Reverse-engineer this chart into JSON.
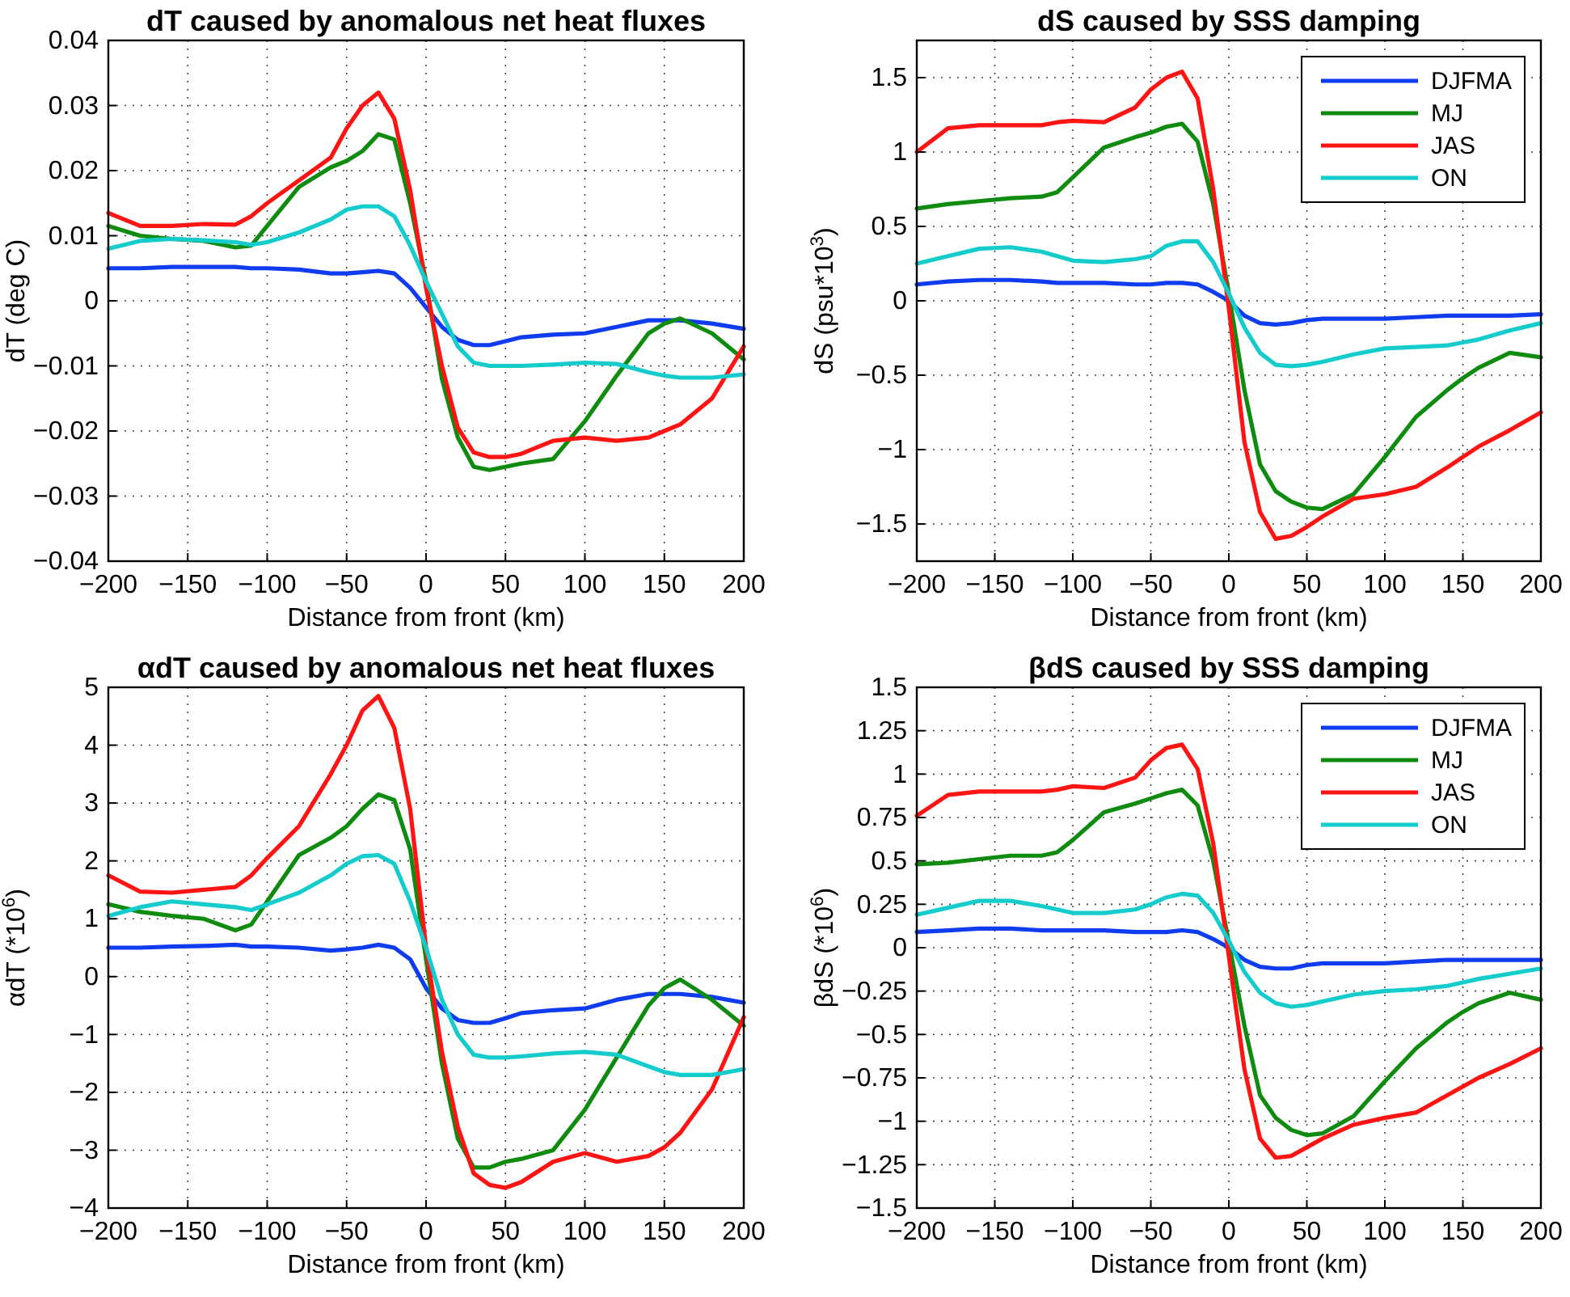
{
  "chart_data": [
    {
      "type": "line",
      "title": "dT caused by anomalous net heat fluxes",
      "xlabel": "Distance from front (km)",
      "ylabel": "dT (deg C)",
      "xlim": [
        -200,
        200
      ],
      "xticks": [
        -200,
        -150,
        -100,
        -50,
        0,
        50,
        100,
        150,
        200
      ],
      "ylim": [
        -0.04,
        0.04
      ],
      "yticks": [
        -0.04,
        -0.03,
        -0.02,
        -0.01,
        0,
        0.01,
        0.02,
        0.03,
        0.04
      ],
      "grid": true,
      "line_style": "solid",
      "x": [
        -200,
        -180,
        -160,
        -140,
        -120,
        -110,
        -100,
        -80,
        -60,
        -50,
        -40,
        -30,
        -20,
        -10,
        0,
        10,
        20,
        30,
        40,
        50,
        60,
        80,
        100,
        120,
        140,
        150,
        160,
        180,
        200
      ],
      "series": [
        {
          "color": "#0f3cf0",
          "values": [
            0.005,
            0.005,
            0.0052,
            0.0052,
            0.0052,
            0.005,
            0.005,
            0.0048,
            0.0042,
            0.0042,
            0.0044,
            0.0046,
            0.0042,
            0.002,
            -0.001,
            -0.004,
            -0.006,
            -0.0068,
            -0.0068,
            -0.0062,
            -0.0056,
            -0.0052,
            -0.005,
            -0.004,
            -0.003,
            -0.003,
            -0.003,
            -0.0035,
            -0.0043
          ]
        },
        {
          "color": "#0f8c0f",
          "values": [
            0.0115,
            0.01,
            0.0095,
            0.0092,
            0.0082,
            0.0085,
            0.0115,
            0.0175,
            0.0205,
            0.0215,
            0.023,
            0.0256,
            0.0248,
            0.015,
            0.003,
            -0.012,
            -0.021,
            -0.0255,
            -0.026,
            -0.0255,
            -0.025,
            -0.0243,
            -0.0185,
            -0.0115,
            -0.005,
            -0.0035,
            -0.0027,
            -0.005,
            -0.009
          ]
        },
        {
          "color": "#ff1414",
          "values": [
            0.0135,
            0.0115,
            0.0115,
            0.0118,
            0.0117,
            0.013,
            0.015,
            0.0185,
            0.022,
            0.0265,
            0.03,
            0.032,
            0.028,
            0.017,
            0.002,
            -0.01,
            -0.0195,
            -0.0233,
            -0.024,
            -0.024,
            -0.0235,
            -0.0215,
            -0.021,
            -0.0215,
            -0.021,
            -0.02,
            -0.019,
            -0.015,
            -0.007
          ]
        },
        {
          "color": "#14cccc",
          "values": [
            0.008,
            0.0092,
            0.0095,
            0.0093,
            0.009,
            0.0086,
            0.009,
            0.0105,
            0.0125,
            0.014,
            0.0145,
            0.0145,
            0.013,
            0.0085,
            0.003,
            -0.002,
            -0.007,
            -0.0095,
            -0.01,
            -0.01,
            -0.01,
            -0.0098,
            -0.0095,
            -0.0097,
            -0.011,
            -0.0115,
            -0.0118,
            -0.0118,
            -0.0113
          ]
        }
      ]
    },
    {
      "type": "line",
      "title": "dS caused by SSS damping",
      "xlabel": "Distance from front (km)",
      "ylabel": "dS (psu*10$^{3}$)",
      "xlim": [
        -200,
        200
      ],
      "xticks": [
        -200,
        -150,
        -100,
        -50,
        0,
        50,
        100,
        150,
        200
      ],
      "ylim": [
        -1.75,
        1.75
      ],
      "yticks": [
        -1.5,
        -1,
        -0.5,
        0,
        0.5,
        1,
        1.5
      ],
      "grid": true,
      "legend": "top right",
      "line_style": "solid",
      "x": [
        -200,
        -180,
        -160,
        -140,
        -120,
        -110,
        -100,
        -80,
        -60,
        -50,
        -40,
        -30,
        -20,
        -10,
        0,
        10,
        20,
        30,
        40,
        50,
        60,
        80,
        100,
        120,
        140,
        150,
        160,
        180,
        200
      ],
      "series": [
        {
          "name": "DJFMA",
          "color": "#0f3cf0",
          "values": [
            0.11,
            0.13,
            0.14,
            0.14,
            0.13,
            0.12,
            0.12,
            0.12,
            0.11,
            0.11,
            0.12,
            0.12,
            0.11,
            0.06,
            0,
            -0.1,
            -0.15,
            -0.16,
            -0.15,
            -0.13,
            -0.12,
            -0.12,
            -0.12,
            -0.11,
            -0.1,
            -0.1,
            -0.1,
            -0.1,
            -0.09
          ]
        },
        {
          "name": "MJ",
          "color": "#0f8c0f",
          "values": [
            0.62,
            0.65,
            0.67,
            0.69,
            0.7,
            0.73,
            0.83,
            1.03,
            1.1,
            1.13,
            1.17,
            1.19,
            1.07,
            0.65,
            0.05,
            -0.6,
            -1.1,
            -1.28,
            -1.35,
            -1.39,
            -1.4,
            -1.3,
            -1.05,
            -0.78,
            -0.6,
            -0.52,
            -0.45,
            -0.35,
            -0.38
          ]
        },
        {
          "name": "JAS",
          "color": "#ff1414",
          "values": [
            1.0,
            1.16,
            1.18,
            1.18,
            1.18,
            1.2,
            1.21,
            1.2,
            1.3,
            1.42,
            1.5,
            1.54,
            1.36,
            0.75,
            -0.05,
            -0.95,
            -1.42,
            -1.6,
            -1.58,
            -1.52,
            -1.45,
            -1.33,
            -1.3,
            -1.25,
            -1.12,
            -1.05,
            -0.98,
            -0.87,
            -0.75
          ]
        },
        {
          "name": "ON",
          "color": "#14cccc",
          "values": [
            0.25,
            0.3,
            0.35,
            0.36,
            0.33,
            0.3,
            0.27,
            0.26,
            0.28,
            0.3,
            0.37,
            0.4,
            0.4,
            0.26,
            0.05,
            -0.18,
            -0.35,
            -0.43,
            -0.44,
            -0.43,
            -0.41,
            -0.36,
            -0.32,
            -0.31,
            -0.3,
            -0.28,
            -0.26,
            -0.2,
            -0.15
          ]
        }
      ]
    },
    {
      "type": "line",
      "title": "αdT caused by anomalous net heat fluxes",
      "xlabel": "Distance from front (km)",
      "ylabel": "αdT (*10$^{6}$)",
      "xlim": [
        -200,
        200
      ],
      "xticks": [
        -200,
        -150,
        -100,
        -50,
        0,
        50,
        100,
        150,
        200
      ],
      "ylim": [
        -4,
        5
      ],
      "yticks": [
        -4,
        -3,
        -2,
        -1,
        0,
        1,
        2,
        3,
        4,
        5
      ],
      "grid": true,
      "line_style": "solid",
      "x": [
        -200,
        -180,
        -160,
        -140,
        -120,
        -110,
        -100,
        -80,
        -60,
        -50,
        -40,
        -30,
        -20,
        -10,
        0,
        10,
        20,
        30,
        40,
        50,
        60,
        80,
        100,
        120,
        140,
        150,
        160,
        180,
        200
      ],
      "series": [
        {
          "color": "#0f3cf0",
          "values": [
            0.5,
            0.5,
            0.52,
            0.53,
            0.55,
            0.52,
            0.52,
            0.5,
            0.45,
            0.47,
            0.5,
            0.55,
            0.5,
            0.3,
            -0.2,
            -0.55,
            -0.75,
            -0.8,
            -0.8,
            -0.72,
            -0.63,
            -0.58,
            -0.55,
            -0.4,
            -0.3,
            -0.3,
            -0.3,
            -0.35,
            -0.45
          ]
        },
        {
          "color": "#0f8c0f",
          "values": [
            1.25,
            1.12,
            1.05,
            1.0,
            0.8,
            0.9,
            1.3,
            2.1,
            2.4,
            2.6,
            2.9,
            3.15,
            3.05,
            2.2,
            0.3,
            -1.5,
            -2.8,
            -3.3,
            -3.3,
            -3.2,
            -3.15,
            -3.0,
            -2.3,
            -1.4,
            -0.5,
            -0.2,
            -0.05,
            -0.4,
            -0.85
          ]
        },
        {
          "color": "#ff1414",
          "values": [
            1.75,
            1.47,
            1.45,
            1.5,
            1.55,
            1.75,
            2.05,
            2.6,
            3.5,
            4.0,
            4.6,
            4.85,
            4.3,
            2.9,
            0.5,
            -1.3,
            -2.6,
            -3.4,
            -3.6,
            -3.65,
            -3.55,
            -3.2,
            -3.05,
            -3.2,
            -3.1,
            -2.95,
            -2.7,
            -1.95,
            -0.7
          ]
        },
        {
          "color": "#14cccc",
          "values": [
            1.05,
            1.2,
            1.3,
            1.25,
            1.2,
            1.15,
            1.25,
            1.45,
            1.75,
            1.95,
            2.08,
            2.1,
            1.95,
            1.3,
            0.5,
            -0.4,
            -1.0,
            -1.35,
            -1.4,
            -1.4,
            -1.38,
            -1.33,
            -1.3,
            -1.35,
            -1.55,
            -1.65,
            -1.7,
            -1.7,
            -1.6
          ]
        }
      ]
    },
    {
      "type": "line",
      "title": "βdS caused by SSS damping",
      "xlabel": "Distance from front (km)",
      "ylabel": "βdS (*10$^{6}$)",
      "xlim": [
        -200,
        200
      ],
      "xticks": [
        -200,
        -150,
        -100,
        -50,
        0,
        50,
        100,
        150,
        200
      ],
      "ylim": [
        -1.5,
        1.5
      ],
      "yticks": [
        -1.5,
        -1.25,
        -1,
        -0.75,
        -0.5,
        -0.25,
        0,
        0.25,
        0.5,
        0.75,
        1,
        1.25,
        1.5
      ],
      "grid": true,
      "legend": "top right",
      "line_style": "solid",
      "x": [
        -200,
        -180,
        -160,
        -140,
        -120,
        -110,
        -100,
        -80,
        -60,
        -50,
        -40,
        -30,
        -20,
        -10,
        0,
        10,
        20,
        30,
        40,
        50,
        60,
        80,
        100,
        120,
        140,
        150,
        160,
        180,
        200
      ],
      "series": [
        {
          "name": "DJFMA",
          "color": "#0f3cf0",
          "values": [
            0.09,
            0.1,
            0.11,
            0.11,
            0.1,
            0.1,
            0.1,
            0.1,
            0.09,
            0.09,
            0.09,
            0.1,
            0.09,
            0.05,
            0,
            -0.07,
            -0.11,
            -0.12,
            -0.12,
            -0.1,
            -0.09,
            -0.09,
            -0.09,
            -0.08,
            -0.07,
            -0.07,
            -0.07,
            -0.07,
            -0.07
          ]
        },
        {
          "name": "MJ",
          "color": "#0f8c0f",
          "values": [
            0.48,
            0.49,
            0.51,
            0.53,
            0.53,
            0.55,
            0.62,
            0.78,
            0.83,
            0.86,
            0.89,
            0.91,
            0.82,
            0.5,
            0.03,
            -0.45,
            -0.85,
            -0.98,
            -1.05,
            -1.08,
            -1.07,
            -0.97,
            -0.77,
            -0.58,
            -0.43,
            -0.37,
            -0.32,
            -0.26,
            -0.3
          ]
        },
        {
          "name": "JAS",
          "color": "#ff1414",
          "values": [
            0.76,
            0.88,
            0.9,
            0.9,
            0.9,
            0.91,
            0.93,
            0.92,
            0.98,
            1.08,
            1.15,
            1.17,
            1.03,
            0.6,
            -0.05,
            -0.7,
            -1.1,
            -1.21,
            -1.2,
            -1.15,
            -1.1,
            -1.02,
            -0.98,
            -0.95,
            -0.85,
            -0.8,
            -0.75,
            -0.67,
            -0.58
          ]
        },
        {
          "name": "ON",
          "color": "#14cccc",
          "values": [
            0.19,
            0.23,
            0.27,
            0.27,
            0.24,
            0.22,
            0.2,
            0.2,
            0.22,
            0.25,
            0.29,
            0.31,
            0.3,
            0.2,
            0.04,
            -0.14,
            -0.26,
            -0.32,
            -0.34,
            -0.33,
            -0.31,
            -0.27,
            -0.25,
            -0.24,
            -0.22,
            -0.2,
            -0.18,
            -0.15,
            -0.12
          ]
        }
      ]
    }
  ]
}
